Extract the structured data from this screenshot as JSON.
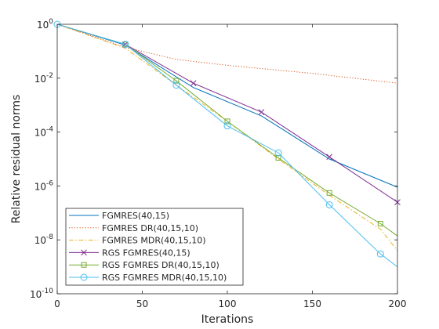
{
  "chart_data": {
    "type": "line",
    "title": "",
    "xlabel": "Iterations",
    "ylabel": "Relative residual norms",
    "xlim": [
      0,
      200
    ],
    "ylim_log10": [
      -10,
      0
    ],
    "yscale": "log",
    "x_ticks": [
      "0",
      "50",
      "100",
      "150",
      "200"
    ],
    "y_ticks": [
      {
        "base": "10",
        "exp": "0"
      },
      {
        "base": "10",
        "exp": "-2"
      },
      {
        "base": "10",
        "exp": "-4"
      },
      {
        "base": "10",
        "exp": "-6"
      },
      {
        "base": "10",
        "exp": "-8"
      },
      {
        "base": "10",
        "exp": "-10"
      }
    ],
    "grid": false,
    "legend_position": "bottom-left",
    "series": [
      {
        "name": "FGMRES(40,15)",
        "color": "#0072BD",
        "style": "solid",
        "marker": "none",
        "points": [
          [
            0,
            1
          ],
          [
            40,
            0.17
          ],
          [
            80,
            0.0045
          ],
          [
            120,
            0.0004
          ],
          [
            160,
            1e-05
          ],
          [
            200,
            9e-07
          ]
        ]
      },
      {
        "name": "FGMRES DR(40,15,10)",
        "color": "#D95319",
        "style": "dotted",
        "marker": "none",
        "points": [
          [
            0,
            1
          ],
          [
            40,
            0.14
          ],
          [
            70,
            0.05
          ],
          [
            100,
            0.03
          ],
          [
            150,
            0.015
          ],
          [
            200,
            0.0065
          ]
        ]
      },
      {
        "name": "FGMRES MDR(40,15,10)",
        "color": "#EDB120",
        "style": "dashdot",
        "marker": "none",
        "points": [
          [
            0,
            1
          ],
          [
            40,
            0.13
          ],
          [
            70,
            0.0055
          ],
          [
            100,
            0.00025
          ],
          [
            130,
            1e-05
          ],
          [
            160,
            4.5e-07
          ],
          [
            190,
            2.5e-08
          ],
          [
            200,
            4e-09
          ]
        ]
      },
      {
        "name": "RGS FGMRES(40,15)",
        "color": "#7E2F8E",
        "style": "solid",
        "marker": "x",
        "points": [
          [
            0,
            1
          ],
          [
            40,
            0.18
          ],
          [
            80,
            0.0065
          ],
          [
            120,
            0.00055
          ],
          [
            160,
            1.2e-05
          ],
          [
            200,
            2.5e-07
          ]
        ],
        "marker_points": [
          [
            40,
            0.18
          ],
          [
            80,
            0.0065
          ],
          [
            120,
            0.00055
          ],
          [
            160,
            1.2e-05
          ],
          [
            200,
            2.5e-07
          ]
        ]
      },
      {
        "name": "RGS FGMRES DR(40,15,10)",
        "color": "#77AC30",
        "style": "solid",
        "marker": "square",
        "points": [
          [
            0,
            1
          ],
          [
            40,
            0.18
          ],
          [
            70,
            0.008
          ],
          [
            100,
            0.00025
          ],
          [
            130,
            1.1e-05
          ],
          [
            160,
            5.5e-07
          ],
          [
            190,
            4e-08
          ],
          [
            200,
            1.4e-08
          ]
        ],
        "marker_points": [
          [
            40,
            0.18
          ],
          [
            70,
            0.008
          ],
          [
            100,
            0.00025
          ],
          [
            130,
            1.1e-05
          ],
          [
            160,
            5.5e-07
          ],
          [
            190,
            4e-08
          ]
        ]
      },
      {
        "name": "RGS FGMRES MDR(40,15,10)",
        "color": "#4DBEEE",
        "style": "solid",
        "marker": "circle",
        "points": [
          [
            0,
            1
          ],
          [
            40,
            0.18
          ],
          [
            70,
            0.0055
          ],
          [
            100,
            0.00017
          ],
          [
            130,
            1.7e-05
          ],
          [
            160,
            2e-07
          ],
          [
            190,
            3e-09
          ],
          [
            200,
            1e-09
          ]
        ],
        "marker_points": [
          [
            0,
            1
          ],
          [
            40,
            0.18
          ],
          [
            70,
            0.0055
          ],
          [
            100,
            0.00017
          ],
          [
            130,
            1.7e-05
          ],
          [
            160,
            2e-07
          ],
          [
            190,
            3e-09
          ]
        ]
      }
    ]
  }
}
